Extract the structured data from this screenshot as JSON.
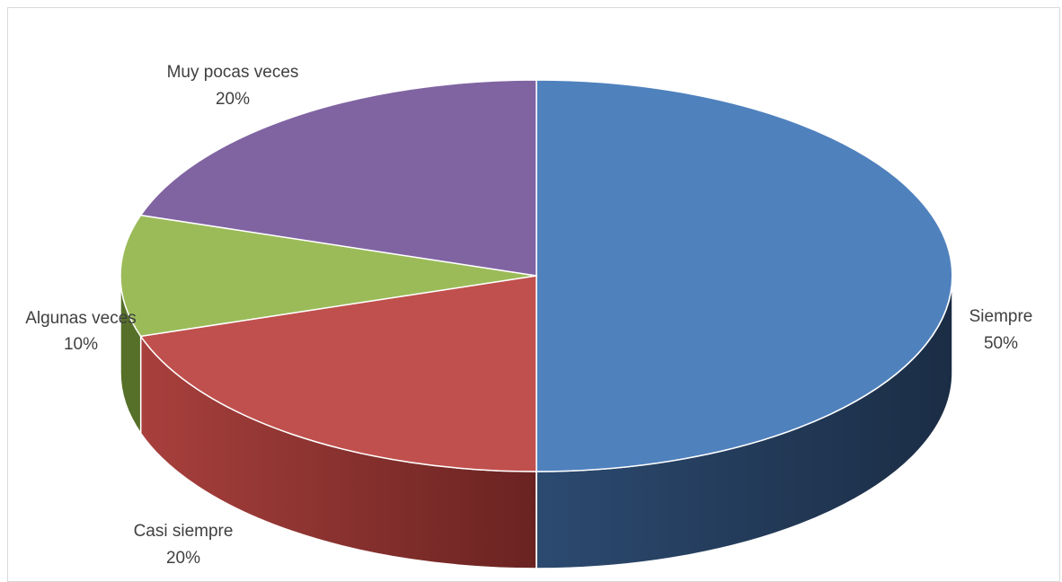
{
  "chart_data": {
    "type": "pie",
    "title": "",
    "legend": "none",
    "slices": [
      {
        "label": "Siempre",
        "value": 50,
        "pct_label": "50%",
        "color": "#4f81bd",
        "side_color": "#1f3350"
      },
      {
        "label": "Casi siempre",
        "value": 20,
        "pct_label": "20%",
        "color": "#c0504d",
        "side_color": "#6e2422"
      },
      {
        "label": "Algunas veces",
        "value": 10,
        "pct_label": "10%",
        "color": "#9bbb59",
        "side_color": "#56702a"
      },
      {
        "label": "Muy pocas veces",
        "value": 20,
        "pct_label": "20%",
        "color": "#8064a2",
        "side_color": "#4b3866"
      }
    ]
  }
}
